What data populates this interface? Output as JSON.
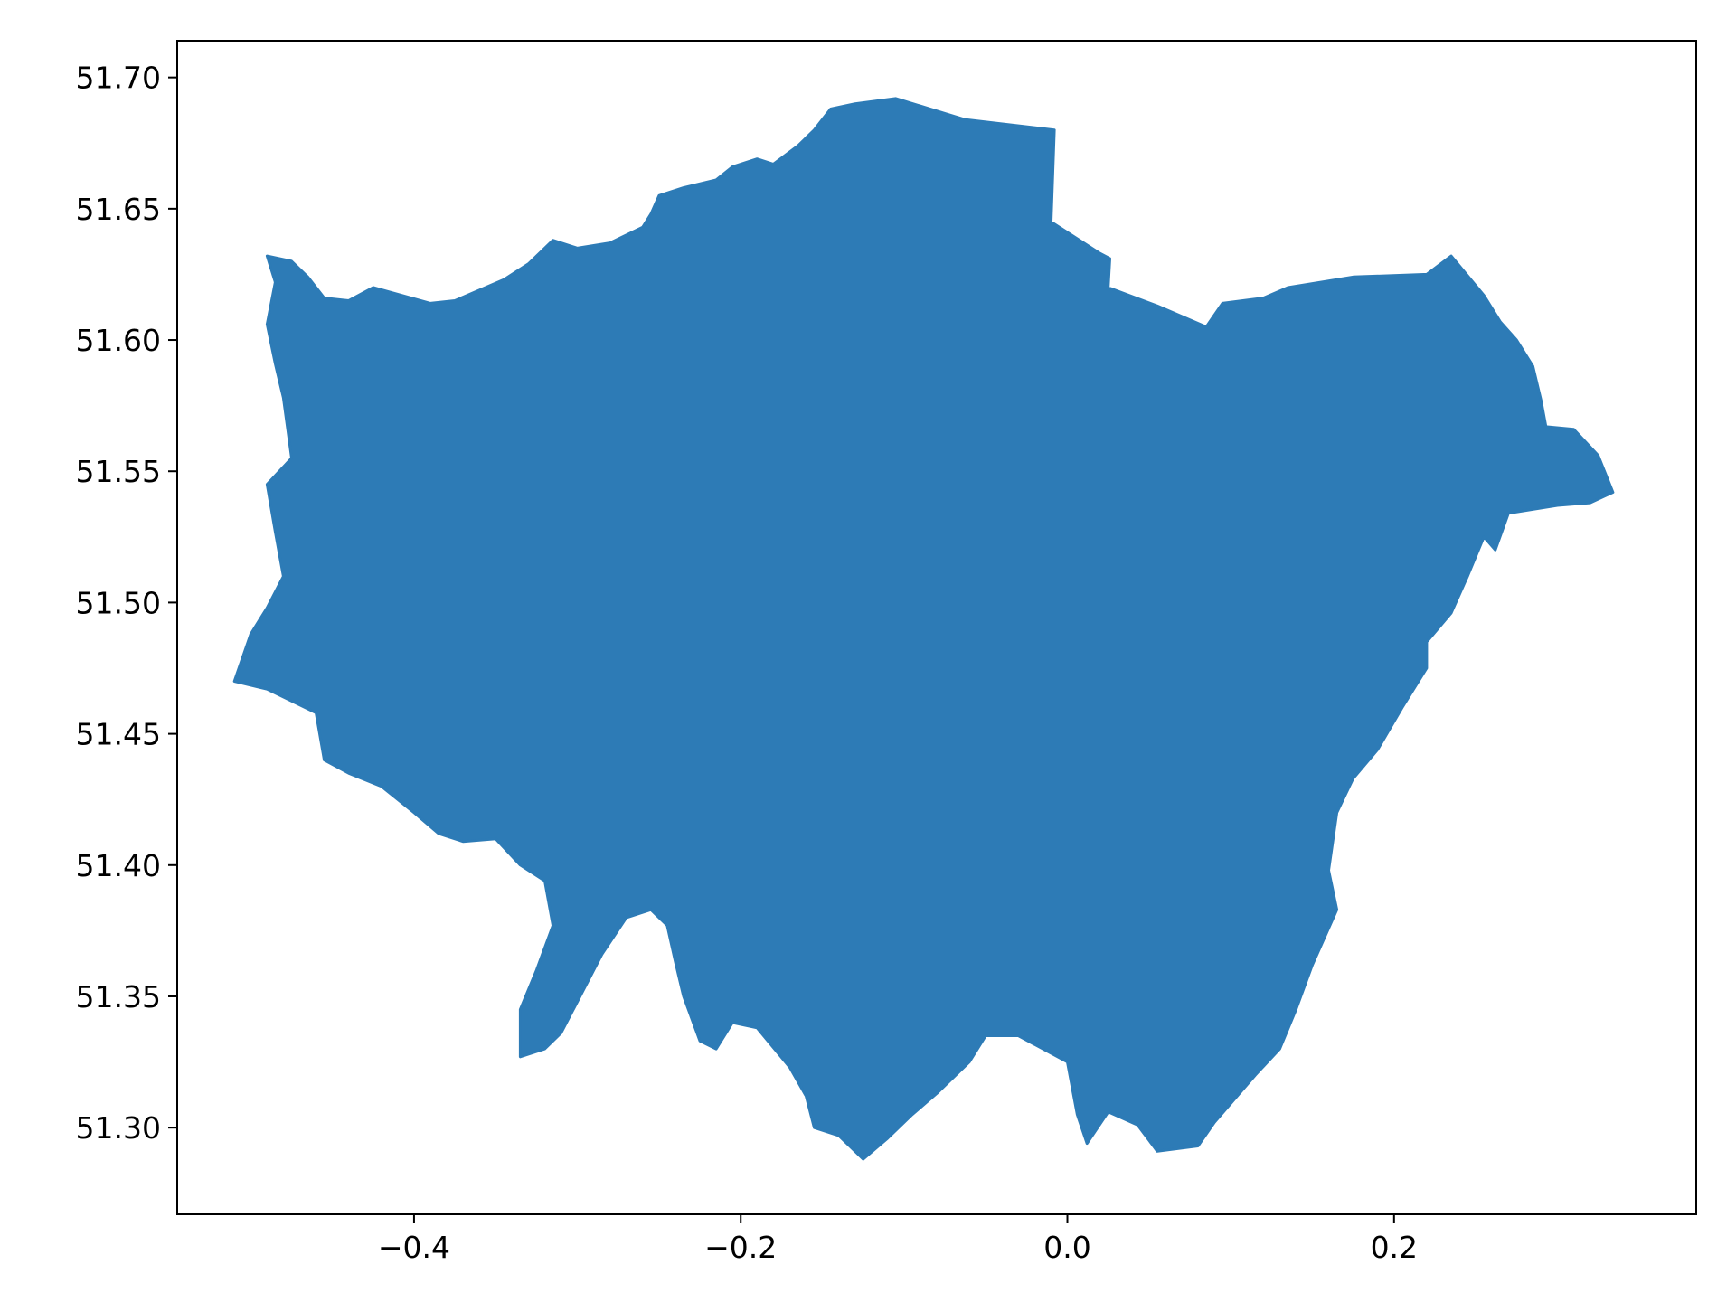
{
  "chart_data": {
    "type": "map",
    "title": "",
    "xlabel": "",
    "ylabel": "",
    "xlim": [
      -0.545,
      0.385
    ],
    "ylim": [
      51.267,
      51.714
    ],
    "grid": false,
    "legend": "none",
    "x_ticks": [
      {
        "value": -0.4,
        "label": "−0.4"
      },
      {
        "value": -0.2,
        "label": "−0.2"
      },
      {
        "value": 0.0,
        "label": "0.0"
      },
      {
        "value": 0.2,
        "label": "0.2"
      }
    ],
    "y_ticks": [
      {
        "value": 51.3,
        "label": "51.30"
      },
      {
        "value": 51.35,
        "label": "51.35"
      },
      {
        "value": 51.4,
        "label": "51.40"
      },
      {
        "value": 51.45,
        "label": "51.45"
      },
      {
        "value": 51.5,
        "label": "51.50"
      },
      {
        "value": 51.55,
        "label": "51.55"
      },
      {
        "value": 51.6,
        "label": "51.60"
      },
      {
        "value": 51.65,
        "label": "51.65"
      },
      {
        "value": 51.7,
        "label": "51.70"
      }
    ],
    "fill_color": "#2d7bb6",
    "region_outline": [
      [
        -0.105,
        51.692
      ],
      [
        -0.063,
        51.684
      ],
      [
        -0.008,
        51.68
      ],
      [
        -0.01,
        51.645
      ],
      [
        0.02,
        51.633
      ],
      [
        0.026,
        51.631
      ],
      [
        0.025,
        51.62
      ],
      [
        0.055,
        51.613
      ],
      [
        0.085,
        51.605
      ],
      [
        0.095,
        51.614
      ],
      [
        0.12,
        51.616
      ],
      [
        0.135,
        51.62
      ],
      [
        0.175,
        51.624
      ],
      [
        0.22,
        51.625
      ],
      [
        0.235,
        51.632
      ],
      [
        0.255,
        51.617
      ],
      [
        0.265,
        51.607
      ],
      [
        0.275,
        51.6
      ],
      [
        0.285,
        51.59
      ],
      [
        0.29,
        51.577
      ],
      [
        0.293,
        51.567
      ],
      [
        0.31,
        51.566
      ],
      [
        0.325,
        51.556
      ],
      [
        0.334,
        51.542
      ],
      [
        0.32,
        51.538
      ],
      [
        0.3,
        51.537
      ],
      [
        0.27,
        51.534
      ],
      [
        0.262,
        51.52
      ],
      [
        0.255,
        51.525
      ],
      [
        0.245,
        51.51
      ],
      [
        0.235,
        51.496
      ],
      [
        0.22,
        51.485
      ],
      [
        0.22,
        51.475
      ],
      [
        0.205,
        51.46
      ],
      [
        0.19,
        51.444
      ],
      [
        0.175,
        51.433
      ],
      [
        0.165,
        51.42
      ],
      [
        0.16,
        51.398
      ],
      [
        0.165,
        51.383
      ],
      [
        0.15,
        51.362
      ],
      [
        0.14,
        51.345
      ],
      [
        0.13,
        51.33
      ],
      [
        0.115,
        51.32
      ],
      [
        0.09,
        51.302
      ],
      [
        0.08,
        51.293
      ],
      [
        0.055,
        51.291
      ],
      [
        0.043,
        51.301
      ],
      [
        0.025,
        51.306
      ],
      [
        0.012,
        51.294
      ],
      [
        0.006,
        51.305
      ],
      [
        0.0,
        51.325
      ],
      [
        -0.03,
        51.335
      ],
      [
        -0.05,
        51.335
      ],
      [
        -0.06,
        51.325
      ],
      [
        -0.08,
        51.313
      ],
      [
        -0.095,
        51.305
      ],
      [
        -0.11,
        51.296
      ],
      [
        -0.125,
        51.288
      ],
      [
        -0.14,
        51.297
      ],
      [
        -0.155,
        51.3
      ],
      [
        -0.16,
        51.312
      ],
      [
        -0.17,
        51.323
      ],
      [
        -0.19,
        51.338
      ],
      [
        -0.205,
        51.34
      ],
      [
        -0.215,
        51.33
      ],
      [
        -0.225,
        51.333
      ],
      [
        -0.235,
        51.35
      ],
      [
        -0.24,
        51.363
      ],
      [
        -0.245,
        51.377
      ],
      [
        -0.255,
        51.383
      ],
      [
        -0.27,
        51.38
      ],
      [
        -0.285,
        51.366
      ],
      [
        -0.3,
        51.348
      ],
      [
        -0.31,
        51.336
      ],
      [
        -0.32,
        51.33
      ],
      [
        -0.335,
        51.327
      ],
      [
        -0.335,
        51.345
      ],
      [
        -0.325,
        51.36
      ],
      [
        -0.315,
        51.377
      ],
      [
        -0.32,
        51.394
      ],
      [
        -0.335,
        51.4
      ],
      [
        -0.35,
        51.41
      ],
      [
        -0.37,
        51.409
      ],
      [
        -0.385,
        51.412
      ],
      [
        -0.4,
        51.42
      ],
      [
        -0.42,
        51.43
      ],
      [
        -0.44,
        51.435
      ],
      [
        -0.455,
        51.44
      ],
      [
        -0.46,
        51.458
      ],
      [
        -0.47,
        51.461
      ],
      [
        -0.49,
        51.467
      ],
      [
        -0.51,
        51.47
      ],
      [
        -0.5,
        51.488
      ],
      [
        -0.49,
        51.498
      ],
      [
        -0.48,
        51.51
      ],
      [
        -0.485,
        51.527
      ],
      [
        -0.49,
        51.545
      ],
      [
        -0.475,
        51.555
      ],
      [
        -0.48,
        51.578
      ],
      [
        -0.485,
        51.591
      ],
      [
        -0.49,
        51.606
      ],
      [
        -0.485,
        51.622
      ],
      [
        -0.49,
        51.632
      ],
      [
        -0.475,
        51.63
      ],
      [
        -0.465,
        51.624
      ],
      [
        -0.455,
        51.616
      ],
      [
        -0.44,
        51.615
      ],
      [
        -0.425,
        51.62
      ],
      [
        -0.39,
        51.614
      ],
      [
        -0.375,
        51.615
      ],
      [
        -0.345,
        51.623
      ],
      [
        -0.33,
        51.629
      ],
      [
        -0.315,
        51.638
      ],
      [
        -0.3,
        51.635
      ],
      [
        -0.28,
        51.637
      ],
      [
        -0.26,
        51.643
      ],
      [
        -0.255,
        51.648
      ],
      [
        -0.25,
        51.655
      ],
      [
        -0.235,
        51.658
      ],
      [
        -0.215,
        51.661
      ],
      [
        -0.205,
        51.666
      ],
      [
        -0.19,
        51.669
      ],
      [
        -0.18,
        51.667
      ],
      [
        -0.165,
        51.674
      ],
      [
        -0.155,
        51.68
      ],
      [
        -0.145,
        51.688
      ],
      [
        -0.13,
        51.69
      ]
    ]
  }
}
